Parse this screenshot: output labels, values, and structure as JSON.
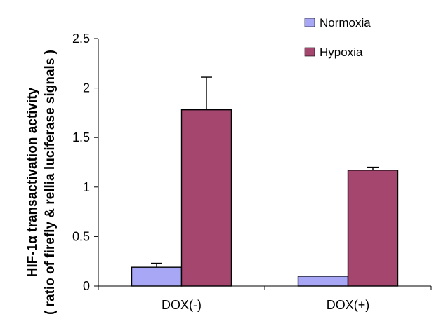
{
  "chart_data": {
    "type": "bar",
    "categories": [
      "DOX(-)",
      "DOX(+)"
    ],
    "series": [
      {
        "name": "Normoxia",
        "values": [
          0.19,
          0.1
        ],
        "errors": [
          0.04,
          0.0
        ],
        "color": "#a7a7f5"
      },
      {
        "name": "Hypoxia",
        "values": [
          1.78,
          1.17
        ],
        "errors": [
          0.33,
          0.03
        ],
        "color": "#a4466e"
      }
    ],
    "ylabel_line1": "HIF-1α transactivation activity",
    "ylabel_line2": "( ratio of firefly & rellia luciferase signals )",
    "ylim": [
      0,
      2.5
    ],
    "yticks": [
      0,
      0.5,
      1,
      1.5,
      2,
      2.5
    ],
    "ytick_labels": [
      "0",
      "0.5",
      "1",
      "1.5",
      "2",
      "2.5"
    ],
    "legend_position": "top-right",
    "grid": false
  }
}
